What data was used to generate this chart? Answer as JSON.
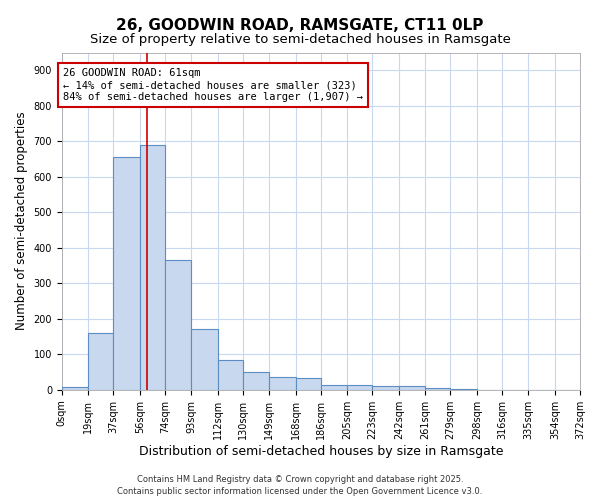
{
  "title1": "26, GOODWIN ROAD, RAMSGATE, CT11 0LP",
  "title2": "Size of property relative to semi-detached houses in Ramsgate",
  "xlabel": "Distribution of semi-detached houses by size in Ramsgate",
  "ylabel": "Number of semi-detached properties",
  "bar_values": [
    8,
    160,
    655,
    690,
    365,
    170,
    85,
    50,
    37,
    32,
    15,
    13,
    12,
    10,
    5,
    3,
    0,
    0,
    0,
    0
  ],
  "bin_edges": [
    0,
    19,
    37,
    56,
    74,
    93,
    112,
    130,
    149,
    168,
    186,
    205,
    223,
    242,
    261,
    279,
    298,
    316,
    335,
    354,
    372
  ],
  "tick_labels": [
    "0sqm",
    "19sqm",
    "37sqm",
    "56sqm",
    "74sqm",
    "93sqm",
    "112sqm",
    "130sqm",
    "149sqm",
    "168sqm",
    "186sqm",
    "205sqm",
    "223sqm",
    "242sqm",
    "261sqm",
    "279sqm",
    "298sqm",
    "316sqm",
    "335sqm",
    "354sqm",
    "372sqm"
  ],
  "bar_color": "#c8d8ee",
  "bar_edge_color": "#5b8ec4",
  "property_size": 61,
  "vline_color": "#cc0000",
  "ylim": [
    0,
    950
  ],
  "yticks": [
    0,
    100,
    200,
    300,
    400,
    500,
    600,
    700,
    800,
    900
  ],
  "annotation_line1": "26 GOODWIN ROAD: 61sqm",
  "annotation_line2": "← 14% of semi-detached houses are smaller (323)",
  "annotation_line3": "84% of semi-detached houses are larger (1,907) →",
  "annotation_box_color": "#ffffff",
  "annotation_border_color": "#cc0000",
  "footer_text": "Contains HM Land Registry data © Crown copyright and database right 2025.\nContains public sector information licensed under the Open Government Licence v3.0.",
  "background_color": "#ffffff",
  "plot_bg_color": "#ffffff",
  "grid_color": "#c8d8f0",
  "title1_fontsize": 11,
  "title2_fontsize": 9.5,
  "xlabel_fontsize": 9,
  "ylabel_fontsize": 8.5,
  "tick_fontsize": 7,
  "annotation_fontsize": 7.5,
  "footer_fontsize": 6
}
